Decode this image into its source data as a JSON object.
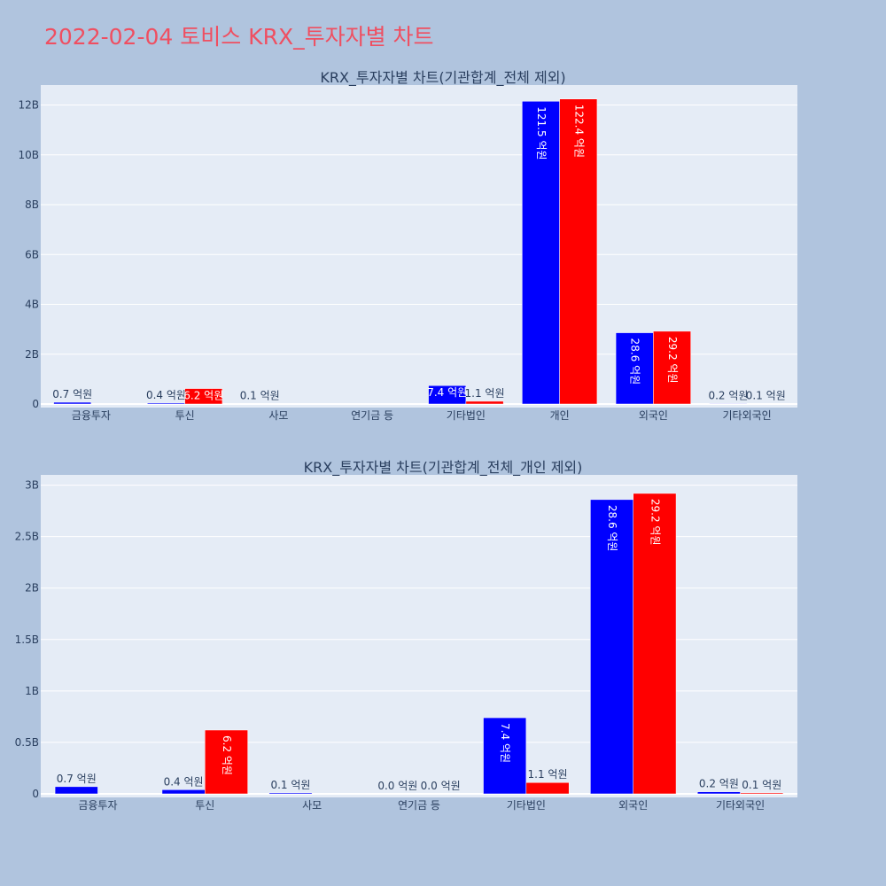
{
  "page": {
    "title": "2022-02-04 토비스 KRX_투자자별 차트"
  },
  "colors": {
    "background": "#b0c4de",
    "plot_bg": "#e5ecf6",
    "series_a": "#0000ff",
    "series_b": "#ff0000",
    "title": "#ef4f61"
  },
  "chart_data": [
    {
      "type": "bar",
      "title": "KRX_투자자별 차트(기관합계_전체 제외)",
      "categories": [
        "금융투자",
        "투신",
        "사모",
        "연기금 등",
        "기타법인",
        "개인",
        "외국인",
        "기타외국인"
      ],
      "series": [
        {
          "values": [
            0.07,
            0.04,
            0.01,
            0,
            0.74,
            12.15,
            2.86,
            0.02
          ],
          "labels": [
            "0.7 억원",
            "0.4 억원",
            "0.1 억원",
            "",
            "7.4 억원",
            "121.5 억원",
            "28.6 억원",
            "0.2 억원"
          ]
        },
        {
          "values": [
            0,
            0.62,
            0,
            0,
            0.11,
            12.24,
            2.92,
            0.01
          ],
          "labels": [
            "",
            "6.2 억원",
            "",
            "",
            "1.1 억원",
            "122.4 억원",
            "29.2 억원",
            "0.1 억원"
          ]
        }
      ],
      "ylim": [
        0,
        12.8
      ],
      "yticks": [
        0,
        2,
        4,
        6,
        8,
        10,
        12
      ],
      "ytick_labels": [
        "0",
        "2B",
        "4B",
        "6B",
        "8B",
        "10B",
        "12B"
      ],
      "grid": true
    },
    {
      "type": "bar",
      "title": "KRX_투자자별 차트(기관합계_전체_개인 제외)",
      "categories": [
        "금융투자",
        "투신",
        "사모",
        "연기금 등",
        "기타법인",
        "외국인",
        "기타외국인"
      ],
      "series": [
        {
          "values": [
            0.07,
            0.04,
            0.01,
            0,
            0.74,
            2.86,
            0.02
          ],
          "labels": [
            "0.7 억원",
            "0.4 억원",
            "0.1 억원",
            "0.0 억원",
            "7.4 억원",
            "28.6 억원",
            "0.2 억원"
          ]
        },
        {
          "values": [
            0,
            0.62,
            0,
            0,
            0.11,
            2.92,
            0.01
          ],
          "labels": [
            "",
            "6.2 억원",
            "",
            "0.0 억원",
            "1.1 억원",
            "29.2 억원",
            "0.1 억원"
          ]
        }
      ],
      "ylim": [
        0,
        3.1
      ],
      "yticks": [
        0,
        0.5,
        1,
        1.5,
        2,
        2.5,
        3
      ],
      "ytick_labels": [
        "0",
        "0.5B",
        "1B",
        "1.5B",
        "2B",
        "2.5B",
        "3B"
      ],
      "grid": true
    }
  ]
}
